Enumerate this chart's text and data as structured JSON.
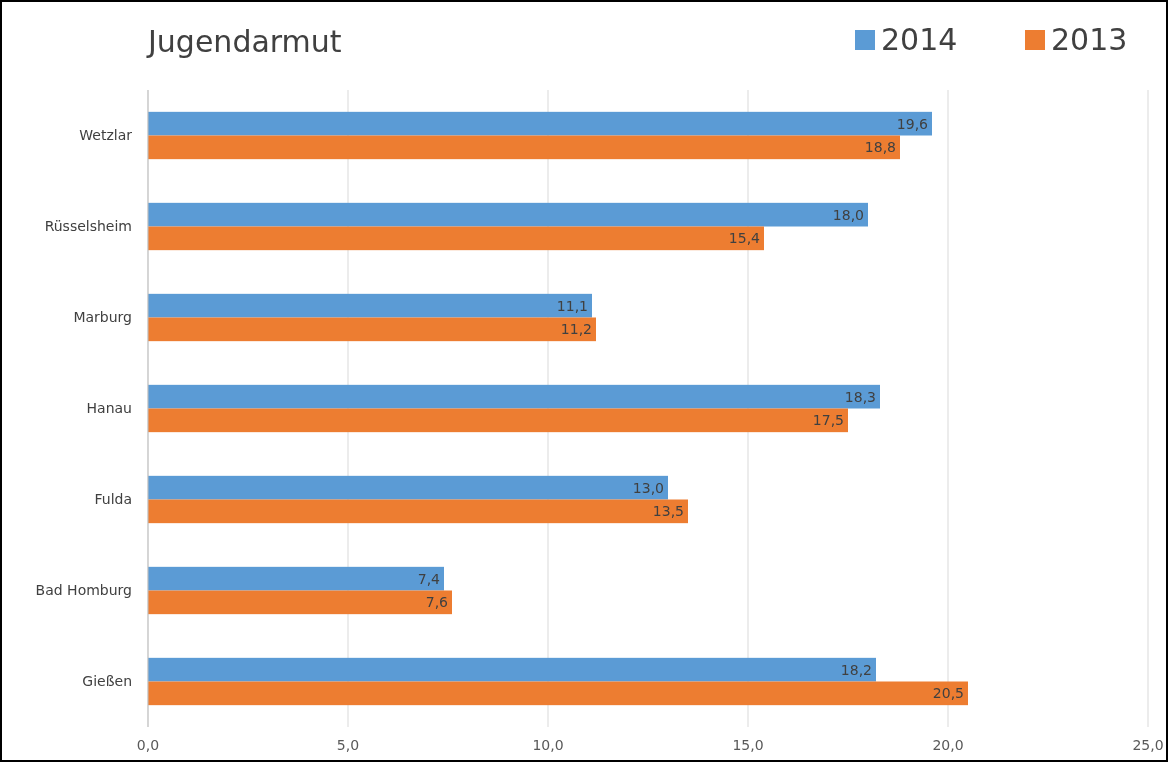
{
  "chart_data": {
    "type": "bar",
    "orientation": "horizontal",
    "title": "Jugendarmut",
    "categories": [
      "Wetzlar",
      "Rüsselsheim",
      "Marburg",
      "Hanau",
      "Fulda",
      "Bad Homburg",
      "Gießen"
    ],
    "series": [
      {
        "name": "2014",
        "color": "#5b9bd5",
        "values": [
          19.6,
          18.0,
          11.1,
          18.3,
          13.0,
          7.4,
          18.2
        ],
        "value_labels": [
          "19,6",
          "18,0",
          "11,1",
          "18,3",
          "13,0",
          "7,4",
          "18,2"
        ]
      },
      {
        "name": "2013",
        "color": "#ed7d31",
        "values": [
          18.8,
          15.4,
          11.2,
          17.5,
          13.5,
          7.6,
          20.5
        ],
        "value_labels": [
          "18,8",
          "15,4",
          "11,2",
          "17,5",
          "13,5",
          "7,6",
          "20,5"
        ]
      }
    ],
    "xlim": [
      0,
      25
    ],
    "xticks": [
      {
        "value": 0,
        "label": "0,0"
      },
      {
        "value": 5,
        "label": "5,0"
      },
      {
        "value": 10,
        "label": "10,0"
      },
      {
        "value": 15,
        "label": "15,0"
      },
      {
        "value": 20,
        "label": "20,0"
      },
      {
        "value": 25,
        "label": "25,0"
      }
    ],
    "grid": "x",
    "legend": "top right"
  }
}
